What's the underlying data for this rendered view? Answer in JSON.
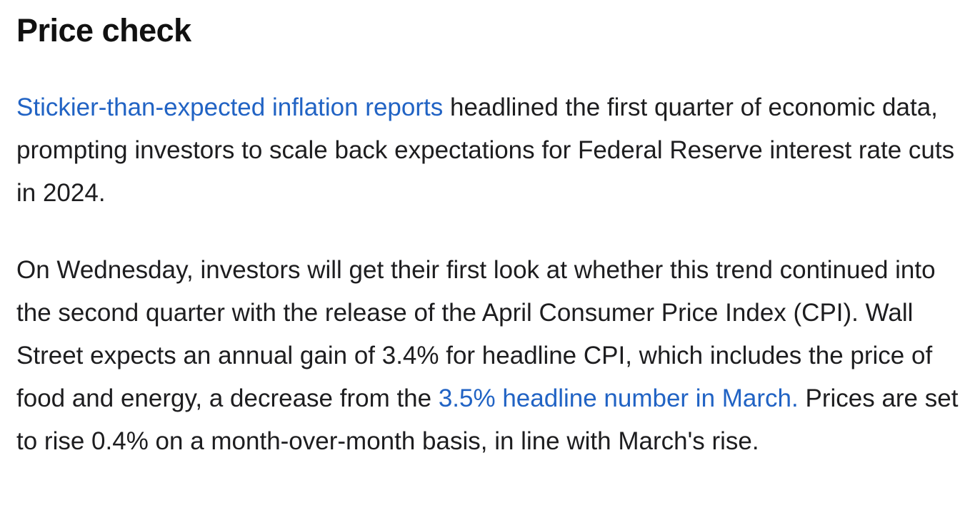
{
  "article": {
    "heading": "Price check",
    "paragraph1": {
      "link_text": "Stickier-than-expected inflation reports",
      "text": " headlined the first quarter of economic data, prompting investors to scale back expectations for Federal Reserve interest rate cuts in 2024."
    },
    "paragraph2": {
      "text_before": "On Wednesday, investors will get their first look at whether this trend continued into the second quarter with the release of the April Consumer Price Index (CPI). Wall Street expects an annual gain of 3.4% for headline CPI, which includes the price of food and energy, a decrease from the ",
      "link_text": "3.5% headline number in March.",
      "text_after": " Prices are set to rise 0.4% on a month-over-month basis, in line with March's rise."
    }
  },
  "colors": {
    "link": "#2163c4",
    "text": "#1d1d1f",
    "heading": "#111111"
  }
}
